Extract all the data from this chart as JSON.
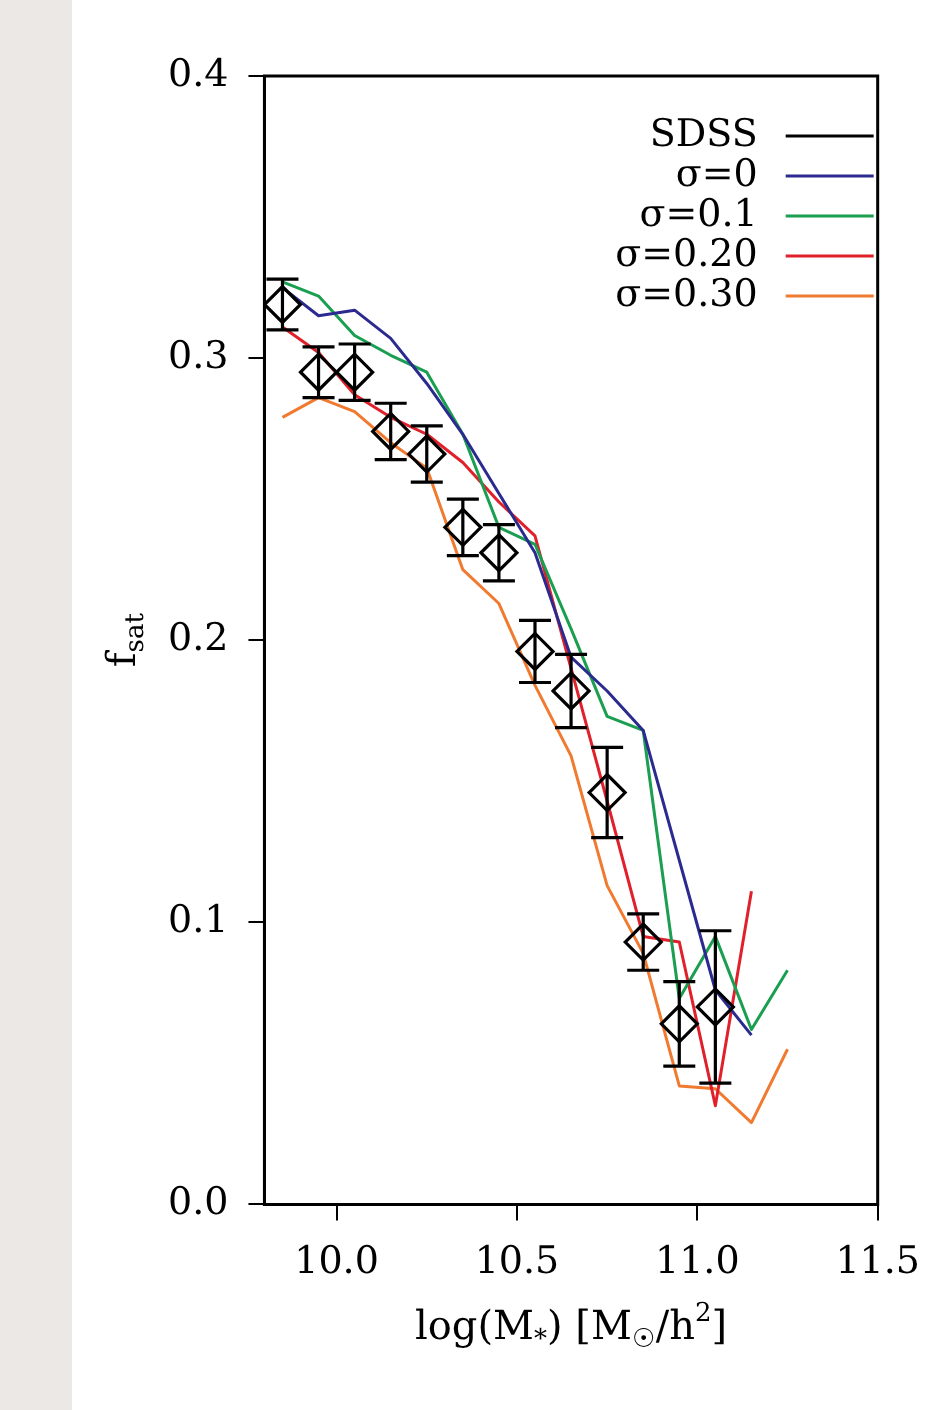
{
  "chart_data": {
    "type": "line",
    "xlabel": "log(M$_{*}$) [M$_{☉}$/h$^{2}$]",
    "ylabel": "f$_{sat}$",
    "xlim": [
      9.8,
      11.5
    ],
    "xticks": [
      {
        "value": 10,
        "label": "10.0"
      },
      {
        "value": 10.5,
        "label": "10.5"
      },
      {
        "value": 11,
        "label": "11.0"
      },
      {
        "value": 11.5,
        "label": "11.5"
      }
    ],
    "ylim": [
      0,
      0.4
    ],
    "yticks": [
      {
        "value": 0,
        "label": "0.0"
      },
      {
        "value": 0.1,
        "label": "0.1"
      },
      {
        "value": 0.2,
        "label": "0.2"
      },
      {
        "value": 0.3,
        "label": "0.3"
      },
      {
        "value": 0.4,
        "label": "0.4"
      }
    ],
    "grid": false,
    "legend": "top right",
    "line_style": "solid",
    "series": [
      {
        "name": "SDSS",
        "type": "scatter",
        "marker": "diamond",
        "color": "#000000",
        "x": [
          9.85,
          9.95,
          10.05,
          10.15,
          10.25,
          10.35,
          10.45,
          10.55,
          10.65,
          10.75,
          10.85,
          10.95,
          11.05
        ],
        "values": [
          0.319,
          0.295,
          0.295,
          0.274,
          0.266,
          0.24,
          0.231,
          0.196,
          0.182,
          0.146,
          0.093,
          0.064,
          0.07
        ],
        "errors": [
          0.009,
          0.009,
          0.01,
          0.01,
          0.01,
          0.01,
          0.01,
          0.011,
          0.013,
          0.016,
          0.01,
          0.015,
          0.027
        ]
      },
      {
        "name": "σ=0",
        "color": "#2b2b8f",
        "x": [
          9.85,
          9.95,
          10.05,
          10.15,
          10.25,
          10.35,
          10.45,
          10.55,
          10.65,
          10.75,
          10.85,
          10.95,
          11.05,
          11.15
        ],
        "values": [
          0.325,
          0.315,
          0.317,
          0.307,
          0.291,
          0.273,
          0.252,
          0.231,
          0.194,
          0.182,
          0.168,
          0.122,
          0.076,
          0.06
        ]
      },
      {
        "name": "σ=0.1",
        "color": "#1a9e50",
        "x": [
          9.85,
          9.95,
          10.05,
          10.15,
          10.25,
          10.35,
          10.45,
          10.55,
          10.65,
          10.75,
          10.85,
          10.95,
          11.05,
          11.15,
          11.25
        ],
        "values": [
          0.327,
          0.322,
          0.308,
          0.301,
          0.295,
          0.273,
          0.24,
          0.234,
          0.204,
          0.173,
          0.168,
          0.073,
          0.095,
          0.062,
          0.083
        ]
      },
      {
        "name": "σ=0.20",
        "color": "#e0202a",
        "x": [
          9.85,
          9.95,
          10.05,
          10.15,
          10.25,
          10.35,
          10.45,
          10.55,
          10.65,
          10.75,
          10.85,
          10.95,
          11.05,
          11.15
        ],
        "values": [
          0.311,
          0.302,
          0.287,
          0.279,
          0.273,
          0.263,
          0.249,
          0.237,
          0.19,
          0.143,
          0.095,
          0.093,
          0.035,
          0.111
        ]
      },
      {
        "name": "σ=0.30",
        "color": "#f07a30",
        "x": [
          9.85,
          9.95,
          10.05,
          10.15,
          10.25,
          10.35,
          10.45,
          10.55,
          10.65,
          10.75,
          10.85,
          10.95,
          11.05,
          11.15,
          11.25
        ],
        "values": [
          0.279,
          0.286,
          0.281,
          0.27,
          0.261,
          0.225,
          0.213,
          0.184,
          0.159,
          0.113,
          0.089,
          0.042,
          0.041,
          0.029,
          0.055
        ]
      }
    ]
  }
}
